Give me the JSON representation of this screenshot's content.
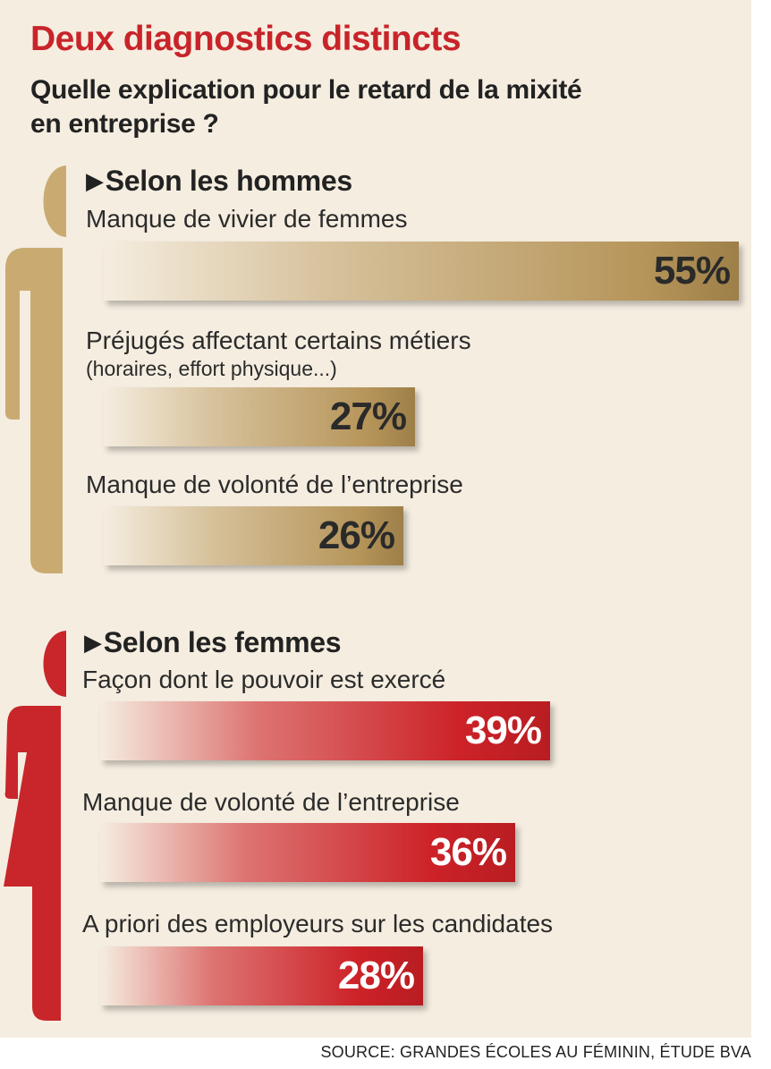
{
  "colors": {
    "title": "#c8242a",
    "men_bar": "#b6955a",
    "women_bar": "#cc2228",
    "background": "#f5ede0"
  },
  "header": {
    "title": "Deux diagnostics distincts",
    "subtitle_line1": "Quelle explication pour le retard de la mixité",
    "subtitle_line2": "en entreprise ?"
  },
  "source": "SOURCE: GRANDES ÉCOLES AU FÉMININ, ÉTUDE BVA",
  "chart_data": {
    "type": "bar",
    "orientation": "horizontal",
    "value_unit": "%",
    "groups": [
      {
        "name": "Selon les hommes",
        "icon": "man-silhouette-icon",
        "color": "#b6955a",
        "categories": [
          "Manque de vivier de femmes",
          "Préjugés affectant certains métiers",
          "Manque de volonté de l’entreprise"
        ],
        "notes": [
          "",
          "(horaires, effort physique...)",
          ""
        ],
        "values": [
          55,
          27,
          26
        ],
        "labels": [
          "55%",
          "27%",
          "26%"
        ]
      },
      {
        "name": "Selon les femmes",
        "icon": "woman-silhouette-icon",
        "color": "#cc2228",
        "categories": [
          "Façon dont le pouvoir est exercé",
          "Manque de volonté de l’entreprise",
          "A priori des employeurs sur les candidates"
        ],
        "notes": [
          "",
          "",
          ""
        ],
        "values": [
          39,
          36,
          28
        ],
        "labels": [
          "39%",
          "36%",
          "28%"
        ]
      }
    ]
  }
}
